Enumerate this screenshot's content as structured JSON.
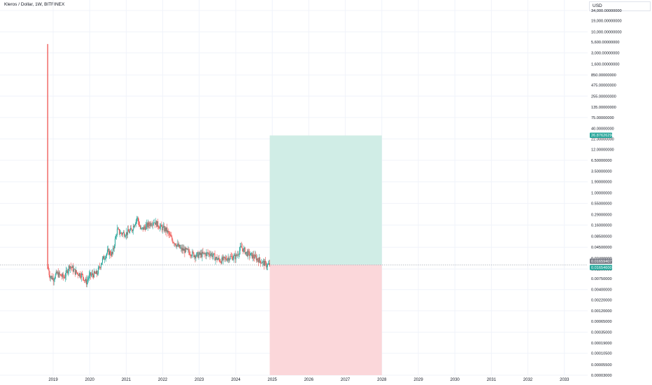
{
  "header": {
    "symbol_title": "Kleros / Dollar, 1W, BITFINEX",
    "currency": "USD"
  },
  "colors": {
    "bull": "#26a69a",
    "bear": "#ef5350",
    "profit_zone": "#d0ede6",
    "loss_zone": "#fbd7da",
    "entry_tag": "#787b86",
    "grid": "#f0f3fa"
  },
  "chart_data": {
    "type": "candlestick",
    "scale": "log",
    "y_axis_labels": [
      "34,000.00000000",
      "19,000.00000000",
      "10,000.00000000",
      "5,600.00000000",
      "3,000.00000000",
      "1,600.00000000",
      "850.00000000",
      "475.00000000",
      "255.00000000",
      "135.00000000",
      "75.00000000",
      "40.00000000",
      "22.00000000",
      "12.00000000",
      "6.50000000",
      "3.50000000",
      "1.90000000",
      "1.00000000",
      "0.55000000",
      "0.29000000",
      "0.16000000",
      "0.08500000",
      "0.04500000",
      "0.02400000",
      "0.01300000",
      "0.00750000",
      "0.00400000",
      "0.00220000",
      "0.00120000",
      "0.00065000",
      "0.00035000",
      "0.00019000",
      "0.00010500",
      "0.00005500",
      "0.00003000"
    ],
    "x_axis_labels": [
      "2019",
      "2020",
      "2021",
      "2022",
      "2023",
      "2024",
      "2025",
      "2026",
      "2027",
      "2028",
      "2029",
      "2030",
      "2031",
      "2032",
      "2033"
    ],
    "price_tags": [
      {
        "value": "26.87626290",
        "color": "#26a69a"
      },
      {
        "value": "0.01659407",
        "color": "#787b86"
      },
      {
        "value": "0.01654600",
        "color": "#26a69a"
      }
    ],
    "position": {
      "type": "long",
      "entry": 0.0165,
      "target": 26.88,
      "stop": 3e-05,
      "start_year": 2024.93,
      "end_year": 2028.0
    },
    "initial_spike": {
      "year": 2018.85,
      "high": 5000,
      "low": 0.013
    },
    "price_path": [
      {
        "year": 2018.85,
        "price": 0.015
      },
      {
        "year": 2018.9,
        "price": 0.009
      },
      {
        "year": 2019.0,
        "price": 0.0075
      },
      {
        "year": 2019.1,
        "price": 0.01
      },
      {
        "year": 2019.3,
        "price": 0.008
      },
      {
        "year": 2019.45,
        "price": 0.016
      },
      {
        "year": 2019.6,
        "price": 0.011
      },
      {
        "year": 2019.8,
        "price": 0.009
      },
      {
        "year": 2019.9,
        "price": 0.006
      },
      {
        "year": 2020.0,
        "price": 0.009
      },
      {
        "year": 2020.2,
        "price": 0.01
      },
      {
        "year": 2020.35,
        "price": 0.022
      },
      {
        "year": 2020.5,
        "price": 0.035
      },
      {
        "year": 2020.62,
        "price": 0.03
      },
      {
        "year": 2020.75,
        "price": 0.12
      },
      {
        "year": 2020.85,
        "price": 0.1
      },
      {
        "year": 2021.0,
        "price": 0.1
      },
      {
        "year": 2021.15,
        "price": 0.12
      },
      {
        "year": 2021.3,
        "price": 0.25
      },
      {
        "year": 2021.4,
        "price": 0.12
      },
      {
        "year": 2021.55,
        "price": 0.15
      },
      {
        "year": 2021.75,
        "price": 0.2
      },
      {
        "year": 2021.95,
        "price": 0.14
      },
      {
        "year": 2022.1,
        "price": 0.12
      },
      {
        "year": 2022.25,
        "price": 0.07
      },
      {
        "year": 2022.5,
        "price": 0.04
      },
      {
        "year": 2022.7,
        "price": 0.035
      },
      {
        "year": 2022.9,
        "price": 0.028
      },
      {
        "year": 2023.1,
        "price": 0.03
      },
      {
        "year": 2023.3,
        "price": 0.032
      },
      {
        "year": 2023.45,
        "price": 0.024
      },
      {
        "year": 2023.6,
        "price": 0.021
      },
      {
        "year": 2023.8,
        "price": 0.025
      },
      {
        "year": 2024.0,
        "price": 0.026
      },
      {
        "year": 2024.15,
        "price": 0.045
      },
      {
        "year": 2024.3,
        "price": 0.032
      },
      {
        "year": 2024.5,
        "price": 0.026
      },
      {
        "year": 2024.7,
        "price": 0.02
      },
      {
        "year": 2024.85,
        "price": 0.016
      },
      {
        "year": 2024.93,
        "price": 0.0165
      }
    ]
  }
}
